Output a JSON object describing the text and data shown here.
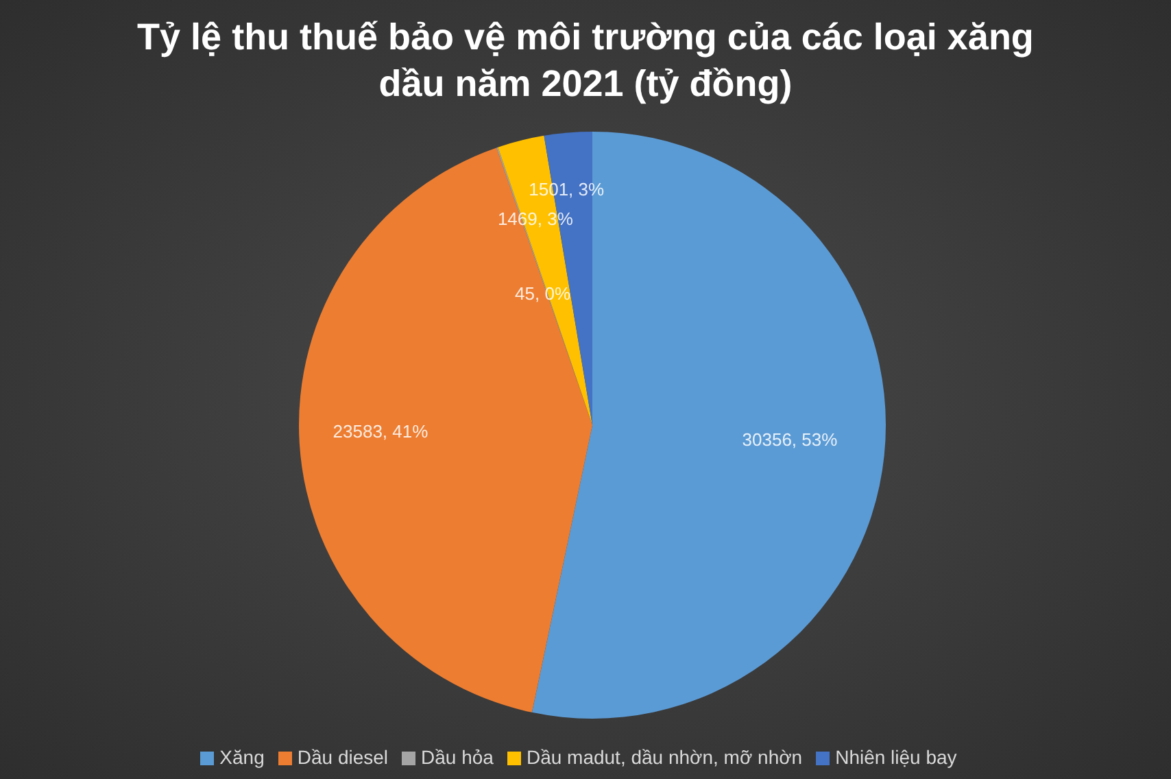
{
  "chart_data": {
    "type": "pie",
    "title": "Tỷ lệ thu thuế bảo vệ môi trường của các loại xăng dầu năm 2021 (tỷ đồng)",
    "categories": [
      "Xăng",
      "Dầu diesel",
      "Dầu hỏa",
      "Dầu madut,  dầu nhờn,  mỡ nhờn",
      "Nhiên liệu bay"
    ],
    "values": [
      30356,
      23583,
      45,
      1469,
      1501
    ],
    "colors": [
      "#5b9bd5",
      "#ed7d31",
      "#a5a5a5",
      "#ffc000",
      "#4472c4"
    ],
    "value_labels": [
      "30356, 53%",
      "23583, 41%",
      "45, 0%",
      "1469, 3%",
      "1501, 3%"
    ],
    "legend": "bottom"
  }
}
